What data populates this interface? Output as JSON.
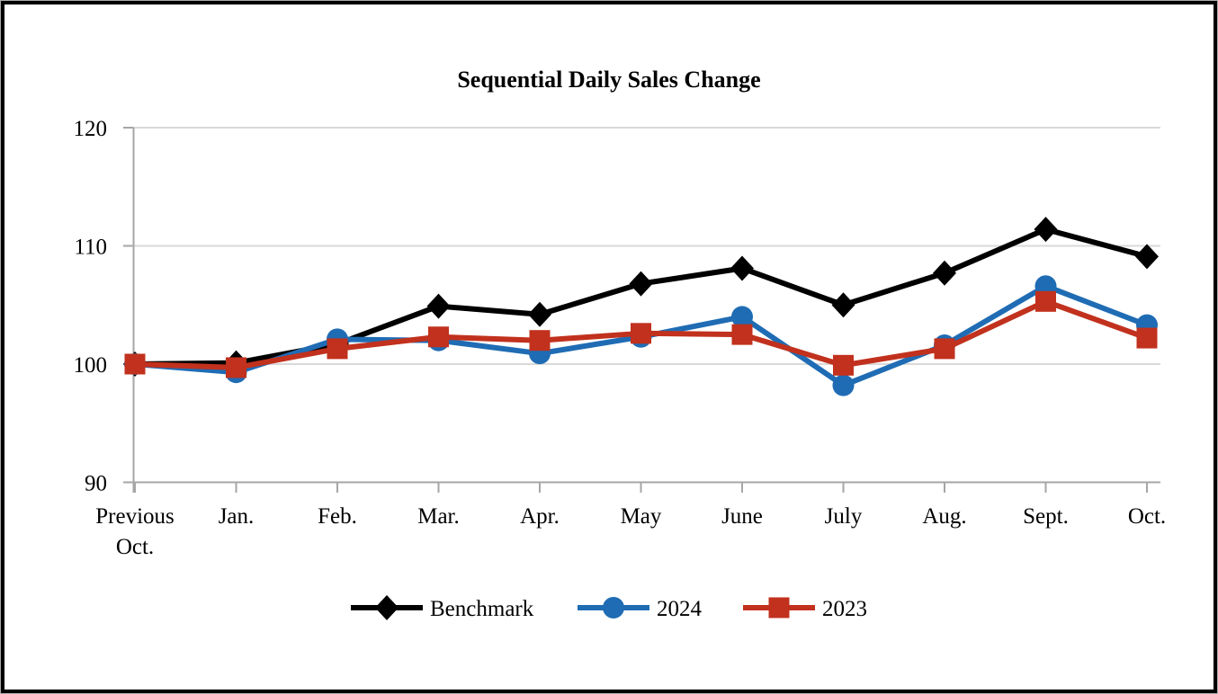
{
  "chart_data": {
    "type": "line",
    "title": "Sequential Daily Sales Change",
    "categories": [
      "Previous Oct.",
      "Jan.",
      "Feb.",
      "Mar.",
      "Apr.",
      "May",
      "June",
      "July",
      "Aug.",
      "Sept.",
      "Oct."
    ],
    "series": [
      {
        "name": "Benchmark",
        "color": "#000000",
        "marker": "diamond",
        "values": [
          100,
          100.1,
          101.7,
          104.9,
          104.2,
          106.8,
          108.1,
          105.0,
          107.7,
          111.4,
          109.1
        ]
      },
      {
        "name": "2024",
        "color": "#1f6cb4",
        "marker": "circle",
        "values": [
          100,
          99.3,
          102.1,
          102.0,
          100.9,
          102.3,
          104.0,
          98.2,
          101.6,
          106.6,
          103.3
        ]
      },
      {
        "name": "2023",
        "color": "#c1311d",
        "marker": "square",
        "values": [
          100,
          99.7,
          101.3,
          102.3,
          102.0,
          102.6,
          102.5,
          99.9,
          101.3,
          105.3,
          102.2
        ]
      }
    ],
    "ylim": [
      90,
      120
    ],
    "yticks": [
      {
        "value": 90,
        "label": "90"
      },
      {
        "value": 100,
        "label": "100"
      },
      {
        "value": 110,
        "label": "110"
      },
      {
        "value": 120,
        "label": "120"
      }
    ],
    "gridline_values": [
      100,
      110,
      120
    ],
    "xlabel": "",
    "ylabel": "",
    "grid": true,
    "legend_position": "bottom",
    "colors": {
      "grid": "#d9d9d9",
      "axis": "#a6a6a6",
      "text": "#000000"
    }
  }
}
